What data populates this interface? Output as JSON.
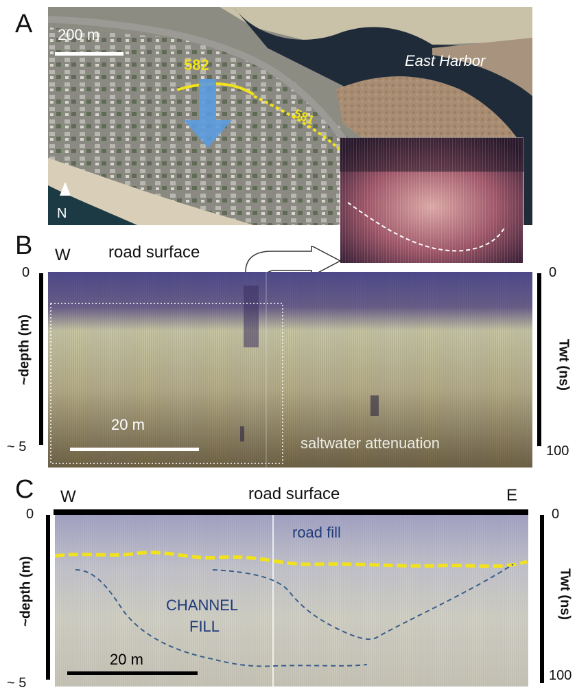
{
  "panel_a": {
    "letter": "A",
    "scale_label": "200 m",
    "place_label": "East Harbor",
    "north_label": "N",
    "line_labels": [
      "582",
      "581"
    ]
  },
  "panel_b": {
    "letter": "B",
    "west_label": "W",
    "surface_label": "road surface",
    "depth_axis_label": "~depth (m)",
    "depth_top": "0",
    "depth_bottom": "~ 5",
    "time_axis_label": "Twt (ns)",
    "time_top": "0",
    "time_bottom": "100",
    "scale_label": "20 m",
    "annotation": "saltwater attenuation"
  },
  "panel_c": {
    "letter": "C",
    "west_label": "W",
    "east_label": "E",
    "surface_label": "road surface",
    "depth_axis_label": "~depth (m)",
    "depth_top": "0",
    "depth_bottom": "~ 5",
    "time_axis_label": "Twt (ns)",
    "time_top": "0",
    "time_bottom": "100",
    "scale_label": "20 m",
    "fill_label": "road fill",
    "channel_label_line1": "CHANNEL",
    "channel_label_line2": "FILL"
  },
  "colors": {
    "highlight_yellow": "#f2e21c",
    "channel_dash": "#3a5e8a",
    "label_blue": "#1f3a7a",
    "arrow_blue": "#5b9be0"
  }
}
